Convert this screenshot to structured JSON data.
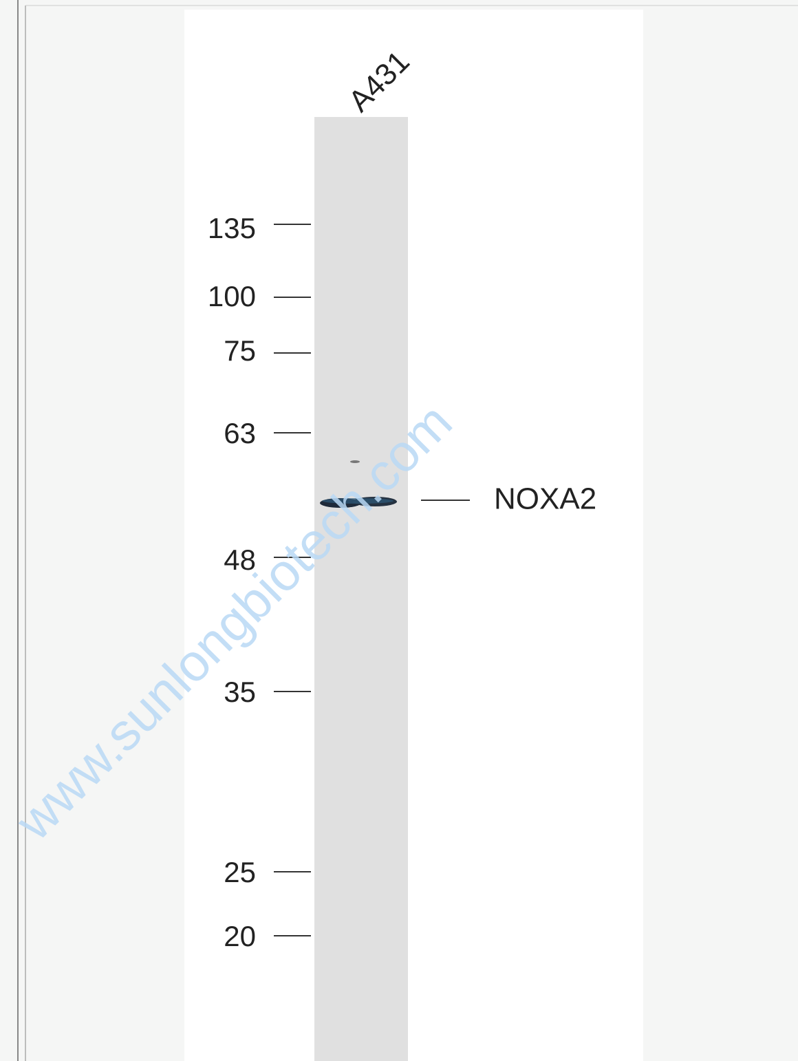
{
  "lane": {
    "label": "A431"
  },
  "markers": [
    "135",
    "100",
    "75",
    "63",
    "48",
    "35",
    "25",
    "20"
  ],
  "band": {
    "label": "NOXA2"
  },
  "watermark": "www.sunlongbiotech.com"
}
